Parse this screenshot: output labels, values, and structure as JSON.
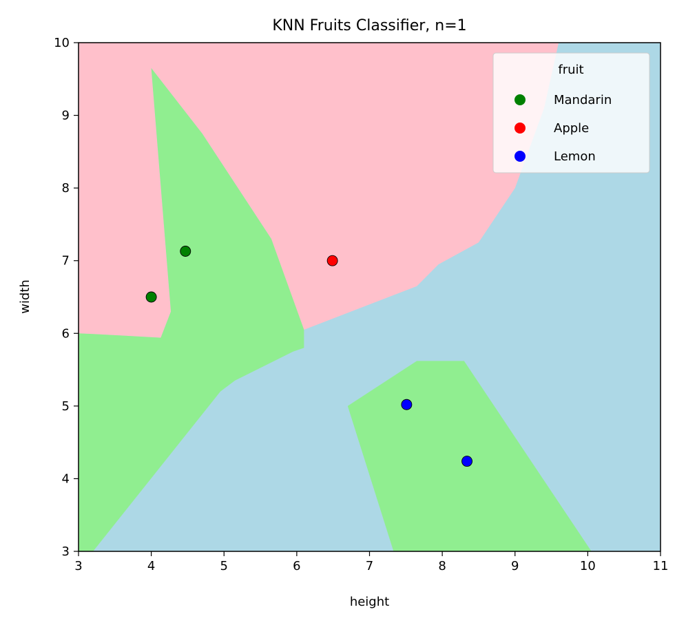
{
  "chart_data": {
    "type": "scatter",
    "title": "KNN Fruits Classifier, n=1",
    "xlabel": "height",
    "ylabel": "width",
    "xlim": [
      3,
      11
    ],
    "ylim": [
      3,
      10
    ],
    "xticks": [
      3,
      4,
      5,
      6,
      7,
      8,
      9,
      10,
      11
    ],
    "yticks": [
      3,
      4,
      5,
      6,
      7,
      8,
      9,
      10
    ],
    "grid": false,
    "legend": {
      "title": "fruit",
      "placement": "top-right",
      "entries": [
        {
          "name": "Mandarin",
          "color": "#008000"
        },
        {
          "name": "Apple",
          "color": "#ff0000"
        },
        {
          "name": "Lemon",
          "color": "#0000ff"
        }
      ]
    },
    "series": [
      {
        "name": "Mandarin",
        "color": "#008000",
        "points": [
          {
            "x": 4.0,
            "y": 6.5
          },
          {
            "x": 4.47,
            "y": 7.13
          }
        ]
      },
      {
        "name": "Apple",
        "color": "#ff0000",
        "points": [
          {
            "x": 6.49,
            "y": 7.0
          }
        ]
      },
      {
        "name": "Lemon",
        "color": "#0000ff",
        "points": [
          {
            "x": 7.51,
            "y": 5.02
          },
          {
            "x": 8.34,
            "y": 4.24
          }
        ]
      }
    ],
    "decision_regions": {
      "background_color": "#add8e6",
      "regions": [
        {
          "class": "Apple",
          "color": "#ffc0cb",
          "vertices": [
            [
              3,
              10
            ],
            [
              9.6,
              10
            ],
            [
              9.4,
              9.1
            ],
            [
              9.0,
              8.0
            ],
            [
              8.5,
              7.25
            ],
            [
              7.95,
              6.95
            ],
            [
              7.65,
              6.65
            ],
            [
              6.1,
              6.05
            ],
            [
              6.1,
              5.95
            ],
            [
              5.65,
              7.3
            ],
            [
              4.7,
              8.75
            ],
            [
              4.0,
              9.65
            ],
            [
              4.27,
              6.3
            ],
            [
              4.13,
              5.94
            ],
            [
              3.6,
              5.97
            ],
            [
              3.2,
              5.99
            ],
            [
              3,
              6.0
            ]
          ]
        },
        {
          "class": "Mandarin",
          "color": "#90ee90",
          "vertices": [
            [
              4.0,
              9.65
            ],
            [
              4.7,
              8.75
            ],
            [
              5.65,
              7.3
            ],
            [
              6.1,
              6.05
            ],
            [
              6.1,
              5.8
            ],
            [
              5.95,
              5.75
            ],
            [
              5.15,
              5.35
            ],
            [
              4.95,
              5.2
            ],
            [
              3.2,
              3.0
            ],
            [
              3,
              3
            ],
            [
              3,
              6.0
            ],
            [
              3.2,
              5.99
            ],
            [
              3.6,
              5.97
            ],
            [
              4.13,
              5.94
            ],
            [
              4.27,
              6.3
            ]
          ]
        },
        {
          "class": "Mandarin",
          "color": "#90ee90",
          "vertices": [
            [
              6.7,
              5.0
            ],
            [
              7.65,
              5.62
            ],
            [
              8.3,
              5.62
            ],
            [
              10.05,
              3.0
            ],
            [
              7.33,
              3.0
            ]
          ]
        }
      ]
    }
  }
}
